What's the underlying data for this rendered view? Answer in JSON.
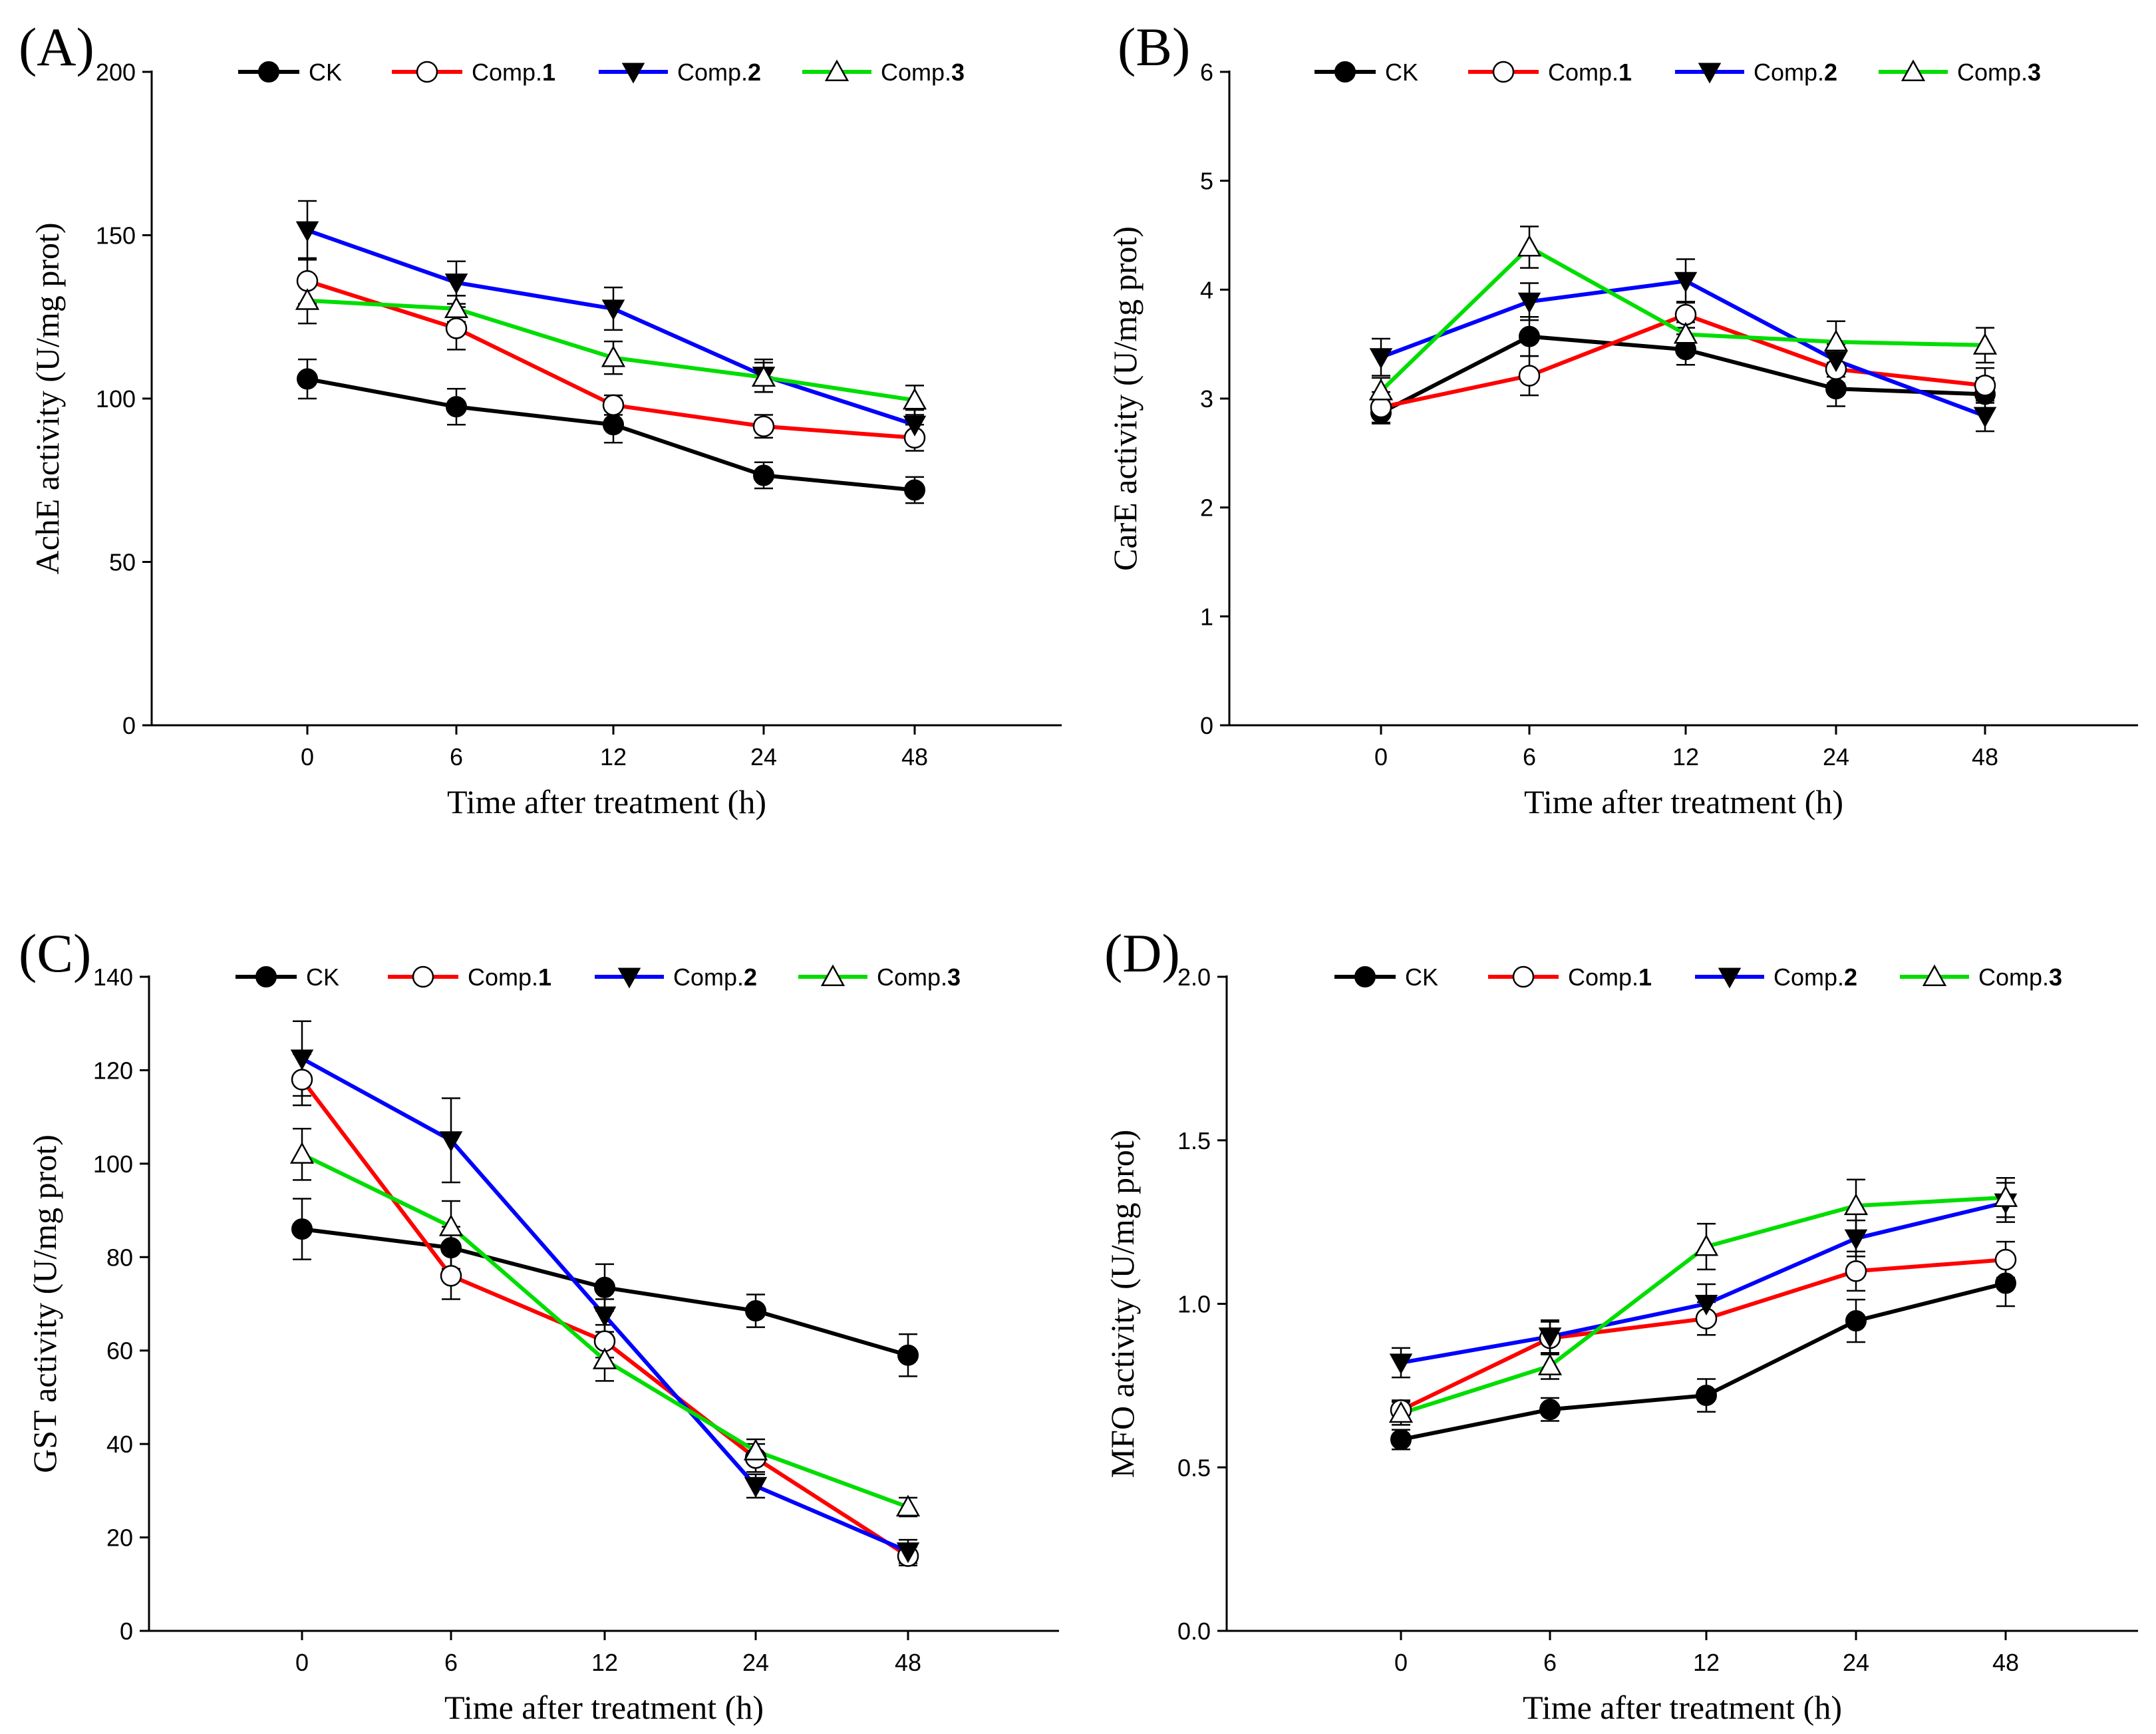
{
  "colors": {
    "CK": "#000000",
    "Comp.1": "#ff0000",
    "Comp.2": "#0000ff",
    "Comp.3": "#00dd00"
  },
  "chart_data": [
    {
      "panel_label": "(A)",
      "type": "line",
      "categories": [
        "0",
        "6",
        "12",
        "24",
        "48"
      ],
      "xlabel": "Time after treatment (h)",
      "ylabel": "AchE activity (U/mg prot)",
      "ylim": [
        0,
        200
      ],
      "yticks": [
        "0",
        "50",
        "100",
        "150",
        "200"
      ],
      "legend_position": "top",
      "series": [
        {
          "name": "CK",
          "marker": "filled-circle",
          "values": [
            106,
            97.5,
            92,
            76.5,
            72
          ],
          "errors": [
            6,
            5.5,
            5.5,
            4,
            4
          ]
        },
        {
          "name": "Comp.1",
          "marker": "open-circle",
          "values": [
            136,
            121.5,
            98,
            91.5,
            88
          ],
          "errors": [
            7,
            6.5,
            3,
            3.5,
            4
          ]
        },
        {
          "name": "Comp.2",
          "marker": "filled-triangle-down",
          "values": [
            151.5,
            135.5,
            127.5,
            107,
            92
          ],
          "errors": [
            9,
            6.5,
            6.5,
            5,
            4.5
          ]
        },
        {
          "name": "Comp.3",
          "marker": "open-triangle-up",
          "values": [
            130,
            127.5,
            112.5,
            106.5,
            99.5
          ],
          "errors": [
            7,
            4,
            5,
            4.5,
            4.5
          ]
        }
      ]
    },
    {
      "panel_label": "(B)",
      "type": "line",
      "categories": [
        "0",
        "6",
        "12",
        "24",
        "48"
      ],
      "xlabel": "Time after treatment (h)",
      "ylabel": "CarE activity (U/mg prot)",
      "ylim": [
        0,
        6
      ],
      "yticks": [
        "0",
        "1",
        "2",
        "3",
        "4",
        "5",
        "6"
      ],
      "legend_position": "top",
      "series": [
        {
          "name": "CK",
          "marker": "filled-circle",
          "values": [
            2.87,
            3.57,
            3.45,
            3.09,
            3.04
          ],
          "errors": [
            0.1,
            0.18,
            0.14,
            0.16,
            0.15
          ]
        },
        {
          "name": "Comp.1",
          "marker": "open-circle",
          "values": [
            2.92,
            3.21,
            3.77,
            3.27,
            3.12
          ],
          "errors": [
            0.14,
            0.18,
            0.12,
            0.13,
            0.16
          ]
        },
        {
          "name": "Comp.2",
          "marker": "filled-triangle-down",
          "values": [
            3.38,
            3.89,
            4.08,
            3.35,
            2.84
          ],
          "errors": [
            0.17,
            0.17,
            0.2,
            0.15,
            0.14
          ]
        },
        {
          "name": "Comp.3",
          "marker": "open-triangle-up",
          "values": [
            3.07,
            4.39,
            3.59,
            3.52,
            3.49
          ],
          "errors": [
            0.12,
            0.19,
            0.11,
            0.19,
            0.16
          ]
        }
      ]
    },
    {
      "panel_label": "(C)",
      "type": "line",
      "categories": [
        "0",
        "6",
        "12",
        "24",
        "48"
      ],
      "xlabel": "Time after treatment (h)",
      "ylabel": "GST activity (U/mg prot)",
      "ylim": [
        0,
        140
      ],
      "yticks": [
        "0",
        "20",
        "40",
        "60",
        "80",
        "100",
        "120",
        "140"
      ],
      "legend_position": "top",
      "series": [
        {
          "name": "CK",
          "marker": "filled-circle",
          "values": [
            86,
            82,
            73.5,
            68.5,
            59
          ],
          "errors": [
            6.5,
            4.5,
            5,
            3.5,
            4.5
          ]
        },
        {
          "name": "Comp.1",
          "marker": "open-circle",
          "values": [
            118,
            76,
            62,
            37,
            16
          ],
          "errors": [
            5.5,
            5,
            3.5,
            3,
            2
          ]
        },
        {
          "name": "Comp.2",
          "marker": "filled-triangle-down",
          "values": [
            122.5,
            105,
            67.5,
            31,
            17
          ],
          "errors": [
            8,
            9,
            3.5,
            2.5,
            2.5
          ]
        },
        {
          "name": "Comp.3",
          "marker": "open-triangle-up",
          "values": [
            102,
            86.5,
            58,
            38.5,
            26.5
          ],
          "errors": [
            5.5,
            5.5,
            4.5,
            2.5,
            2
          ]
        }
      ]
    },
    {
      "panel_label": "(D)",
      "type": "line",
      "categories": [
        "0",
        "6",
        "12",
        "24",
        "48"
      ],
      "xlabel": "Time after treatment (h)",
      "ylabel": "MFO activity (U/mg prot)",
      "ylim": [
        0,
        2
      ],
      "yticks": [
        "0.0",
        "0.5",
        "1.0",
        "1.5",
        "2.0"
      ],
      "legend_position": "top",
      "series": [
        {
          "name": "CK",
          "marker": "filled-circle",
          "values": [
            0.585,
            0.677,
            0.72,
            0.948,
            1.063
          ],
          "errors": [
            0.03,
            0.035,
            0.05,
            0.065,
            0.07
          ]
        },
        {
          "name": "Comp.1",
          "marker": "open-circle",
          "values": [
            0.675,
            0.895,
            0.955,
            1.1,
            1.135
          ],
          "errors": [
            0.03,
            0.05,
            0.05,
            0.06,
            0.055
          ]
        },
        {
          "name": "Comp.2",
          "marker": "filled-triangle-down",
          "values": [
            0.82,
            0.9,
            1.0,
            1.2,
            1.31
          ],
          "errors": [
            0.045,
            0.05,
            0.06,
            0.055,
            0.06
          ]
        },
        {
          "name": "Comp.3",
          "marker": "open-triangle-up",
          "values": [
            0.665,
            0.81,
            1.175,
            1.3,
            1.325
          ],
          "errors": [
            0.035,
            0.04,
            0.07,
            0.08,
            0.06
          ]
        }
      ]
    }
  ]
}
